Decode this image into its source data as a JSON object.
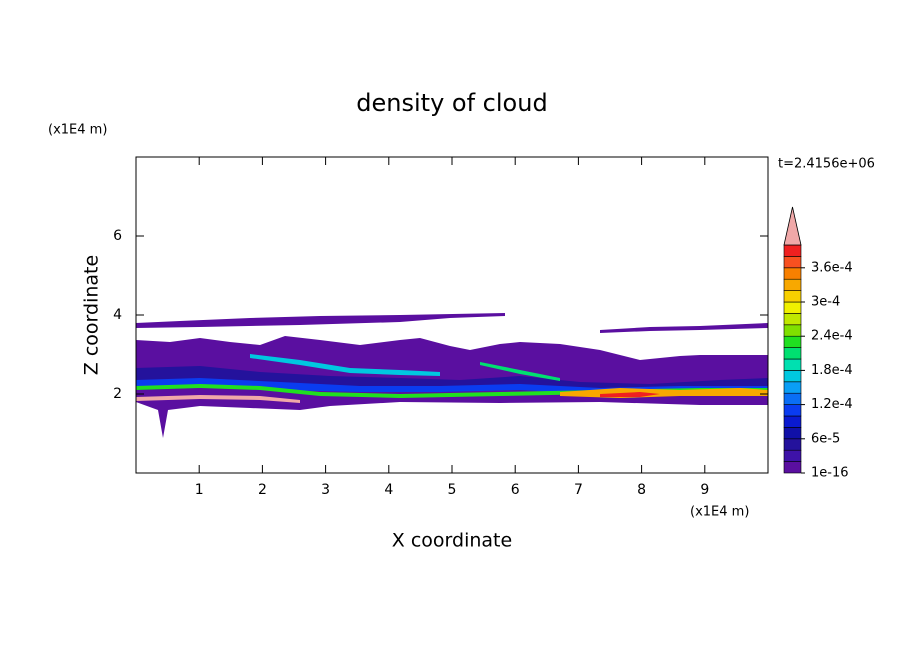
{
  "chart_data": {
    "type": "contour",
    "title": "density of cloud",
    "x_label": "X coordinate",
    "y_label": "Z coordinate",
    "x_unit": "(x1E4 m)",
    "y_unit": "(x1E4 m)",
    "time_label": "t=2.4156e+06",
    "xlim": [
      0,
      10
    ],
    "xticks": [
      1,
      2,
      3,
      4,
      5,
      6,
      7,
      8,
      9
    ],
    "ylim": [
      0,
      8
    ],
    "yticks": [
      2,
      4,
      6
    ],
    "levels": [
      1e-16,
      2e-05,
      4e-05,
      6e-05,
      8e-05,
      0.0001,
      0.00012,
      0.00014,
      0.00016,
      0.00018,
      0.0002,
      0.00022,
      0.00024,
      0.00026,
      0.00028,
      0.0003,
      0.00032,
      0.00034,
      0.00036,
      0.00038
    ],
    "colors": [
      "#5a0fa0",
      "#3e12a8",
      "#24129c",
      "#1010a8",
      "#0a1ad0",
      "#0a3cf0",
      "#0a6ef5",
      "#0a9ef5",
      "#00c8e0",
      "#00e0b0",
      "#00e070",
      "#20e020",
      "#80e000",
      "#c0e800",
      "#f0f000",
      "#f8d000",
      "#f8a800",
      "#f88000",
      "#f85020",
      "#f02020"
    ],
    "over_color": "#f0a8a8",
    "colorbar_ticks": [
      1e-16,
      {
        "value": 6e-05,
        "label": "6e-5"
      },
      {
        "value": 0.00012,
        "label": "1.2e-4"
      },
      {
        "value": 0.00018,
        "label": "1.8e-4"
      },
      {
        "value": 0.00024,
        "label": "2.4e-4"
      },
      {
        "value": 0.0003,
        "label": "3e-4"
      },
      {
        "value": 0.00036,
        "label": "3.6e-4"
      }
    ]
  }
}
